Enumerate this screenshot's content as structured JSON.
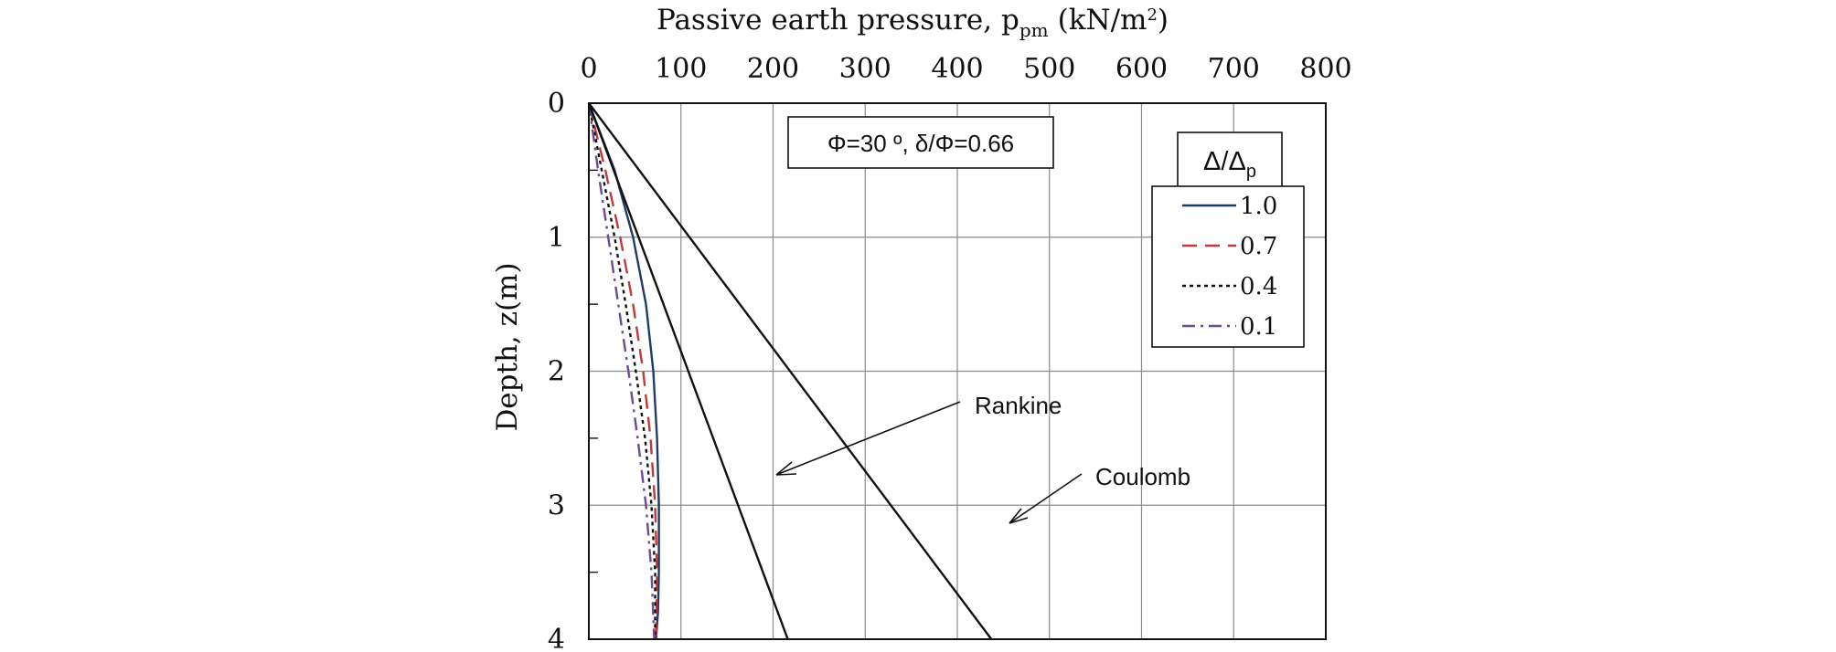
{
  "chart_data": {
    "type": "line",
    "xlabel": {
      "text": "Passive earth pressure, p",
      "sub": "pm",
      "unit_open": "(kN/m",
      "unit_sup": "2",
      "unit_close": ")"
    },
    "ylabel": "Depth, z(m)",
    "xlim": [
      0,
      800
    ],
    "ylim": [
      4,
      0
    ],
    "x_ticks": [
      "0",
      "100",
      "200",
      "300",
      "400",
      "500",
      "600",
      "700",
      "800"
    ],
    "y_ticks": [
      "0",
      "1",
      "2",
      "3",
      "4"
    ],
    "grid": true,
    "params_box": "Φ=30 º, δ/Φ=0.66",
    "legend": {
      "title_main": "Δ/Δ",
      "title_sub": "p",
      "placement": "top-right"
    },
    "series": [
      {
        "name": "1.0",
        "color": "#1f3a6b",
        "dash": "solid",
        "x": [
          0,
          28,
          48,
          62,
          70,
          74,
          76,
          76,
          75,
          73
        ],
        "y": [
          0,
          0.5,
          1.0,
          1.5,
          2.0,
          2.5,
          3.0,
          3.5,
          3.8,
          4.0
        ]
      },
      {
        "name": "0.7",
        "color": "#c0393b",
        "dash": "dashed",
        "x": [
          0,
          18,
          34,
          48,
          59,
          67,
          72,
          74,
          73
        ],
        "y": [
          0,
          0.5,
          1.0,
          1.5,
          2.0,
          2.5,
          3.0,
          3.5,
          4.0
        ]
      },
      {
        "name": "0.4",
        "color": "#111111",
        "dash": "dotted",
        "x": [
          0,
          14,
          28,
          40,
          51,
          61,
          68,
          72,
          72
        ],
        "y": [
          0,
          0.5,
          1.0,
          1.5,
          2.0,
          2.5,
          3.0,
          3.5,
          4.0
        ]
      },
      {
        "name": "0.1",
        "color": "#6a4c93",
        "dash": "dashdot",
        "x": [
          0,
          10,
          21,
          32,
          43,
          53,
          62,
          68,
          71
        ],
        "y": [
          0,
          0.5,
          1.0,
          1.5,
          2.0,
          2.5,
          3.0,
          3.5,
          4.0
        ]
      },
      {
        "name": "Rankine",
        "color": "#111111",
        "dash": "solid",
        "x": [
          0,
          216
        ],
        "y": [
          0,
          4
        ]
      },
      {
        "name": "Coulomb",
        "color": "#111111",
        "dash": "solid",
        "x": [
          0,
          437
        ],
        "y": [
          0,
          4
        ]
      }
    ],
    "annotations": [
      {
        "text": "Rankine",
        "target": [
          205,
          2.77
        ]
      },
      {
        "text": "Coulomb",
        "target": [
          455,
          3.15
        ]
      }
    ]
  }
}
